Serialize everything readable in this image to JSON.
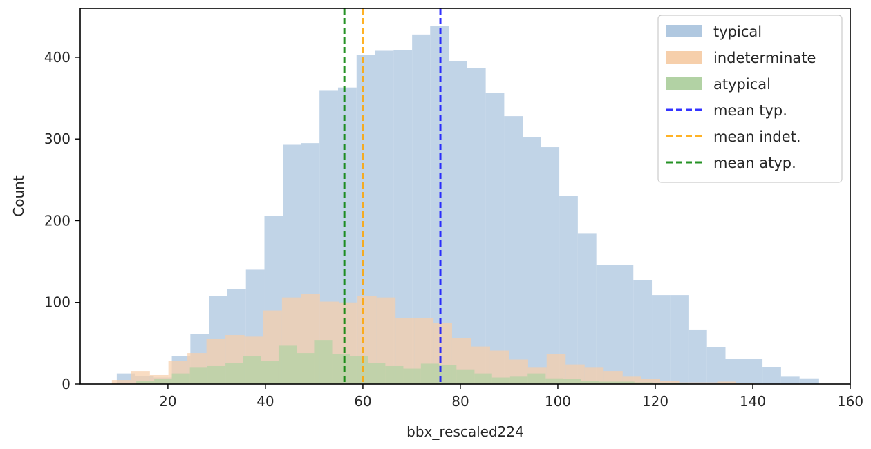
{
  "chart_data": {
    "type": "histogram",
    "xlabel": "bbx_rescaled224",
    "ylabel": "Count",
    "xlim": [
      2,
      160
    ],
    "ylim": [
      0,
      460
    ],
    "xticks": [
      20,
      40,
      60,
      80,
      100,
      120,
      140,
      160
    ],
    "yticks": [
      0,
      100,
      200,
      300,
      400
    ],
    "legend_position": "top-right",
    "series": [
      {
        "name": "typical",
        "color": "#b0c8e0",
        "bins": [
          {
            "x0": 9.5,
            "x1": 13.3,
            "count": 13
          },
          {
            "x0": 13.3,
            "x1": 17.1,
            "count": 10
          },
          {
            "x0": 17.1,
            "x1": 20.8,
            "count": 8
          },
          {
            "x0": 20.8,
            "x1": 24.6,
            "count": 34
          },
          {
            "x0": 24.6,
            "x1": 28.4,
            "count": 61
          },
          {
            "x0": 28.4,
            "x1": 32.2,
            "count": 108
          },
          {
            "x0": 32.2,
            "x1": 36.0,
            "count": 116
          },
          {
            "x0": 36.0,
            "x1": 39.8,
            "count": 140
          },
          {
            "x0": 39.8,
            "x1": 43.6,
            "count": 206
          },
          {
            "x0": 43.6,
            "x1": 47.3,
            "count": 293
          },
          {
            "x0": 47.3,
            "x1": 51.1,
            "count": 295
          },
          {
            "x0": 51.1,
            "x1": 54.9,
            "count": 359
          },
          {
            "x0": 54.9,
            "x1": 58.7,
            "count": 363
          },
          {
            "x0": 58.7,
            "x1": 62.5,
            "count": 403
          },
          {
            "x0": 62.5,
            "x1": 66.3,
            "count": 408
          },
          {
            "x0": 66.3,
            "x1": 70.1,
            "count": 409
          },
          {
            "x0": 70.1,
            "x1": 73.8,
            "count": 428
          },
          {
            "x0": 73.8,
            "x1": 77.6,
            "count": 438
          },
          {
            "x0": 77.6,
            "x1": 81.4,
            "count": 395
          },
          {
            "x0": 81.4,
            "x1": 85.2,
            "count": 387
          },
          {
            "x0": 85.2,
            "x1": 89.0,
            "count": 356
          },
          {
            "x0": 89.0,
            "x1": 92.8,
            "count": 328
          },
          {
            "x0": 92.8,
            "x1": 96.6,
            "count": 302
          },
          {
            "x0": 96.6,
            "x1": 100.3,
            "count": 290
          },
          {
            "x0": 100.3,
            "x1": 104.1,
            "count": 230
          },
          {
            "x0": 104.1,
            "x1": 107.9,
            "count": 184
          },
          {
            "x0": 107.9,
            "x1": 111.7,
            "count": 146
          },
          {
            "x0": 111.7,
            "x1": 115.5,
            "count": 146
          },
          {
            "x0": 115.5,
            "x1": 119.3,
            "count": 127
          },
          {
            "x0": 119.3,
            "x1": 123.1,
            "count": 109
          },
          {
            "x0": 123.1,
            "x1": 126.8,
            "count": 109
          },
          {
            "x0": 126.8,
            "x1": 130.6,
            "count": 66
          },
          {
            "x0": 130.6,
            "x1": 134.4,
            "count": 45
          },
          {
            "x0": 134.4,
            "x1": 138.2,
            "count": 31
          },
          {
            "x0": 138.2,
            "x1": 142.0,
            "count": 31
          },
          {
            "x0": 142.0,
            "x1": 145.8,
            "count": 21
          },
          {
            "x0": 145.8,
            "x1": 149.6,
            "count": 9
          },
          {
            "x0": 149.6,
            "x1": 153.6,
            "count": 7
          }
        ]
      },
      {
        "name": "indeterminate",
        "color": "#f6cfab",
        "bins": [
          {
            "x0": 8.5,
            "x1": 12.4,
            "count": 5
          },
          {
            "x0": 12.4,
            "x1": 16.3,
            "count": 16
          },
          {
            "x0": 16.3,
            "x1": 20.1,
            "count": 11
          },
          {
            "x0": 20.1,
            "x1": 24.0,
            "count": 28
          },
          {
            "x0": 24.0,
            "x1": 27.9,
            "count": 38
          },
          {
            "x0": 27.9,
            "x1": 31.8,
            "count": 55
          },
          {
            "x0": 31.8,
            "x1": 35.7,
            "count": 60
          },
          {
            "x0": 35.7,
            "x1": 39.5,
            "count": 58
          },
          {
            "x0": 39.5,
            "x1": 43.4,
            "count": 90
          },
          {
            "x0": 43.4,
            "x1": 47.3,
            "count": 106
          },
          {
            "x0": 47.3,
            "x1": 51.2,
            "count": 110
          },
          {
            "x0": 51.2,
            "x1": 55.1,
            "count": 101
          },
          {
            "x0": 55.1,
            "x1": 58.9,
            "count": 100
          },
          {
            "x0": 58.9,
            "x1": 62.8,
            "count": 108
          },
          {
            "x0": 62.8,
            "x1": 66.7,
            "count": 106
          },
          {
            "x0": 66.7,
            "x1": 70.6,
            "count": 81
          },
          {
            "x0": 70.6,
            "x1": 74.5,
            "count": 81
          },
          {
            "x0": 74.5,
            "x1": 78.3,
            "count": 75
          },
          {
            "x0": 78.3,
            "x1": 82.2,
            "count": 56
          },
          {
            "x0": 82.2,
            "x1": 86.1,
            "count": 46
          },
          {
            "x0": 86.1,
            "x1": 90.0,
            "count": 41
          },
          {
            "x0": 90.0,
            "x1": 93.9,
            "count": 30
          },
          {
            "x0": 93.9,
            "x1": 97.7,
            "count": 20
          },
          {
            "x0": 97.7,
            "x1": 101.6,
            "count": 37
          },
          {
            "x0": 101.6,
            "x1": 105.5,
            "count": 24
          },
          {
            "x0": 105.5,
            "x1": 109.4,
            "count": 20
          },
          {
            "x0": 109.4,
            "x1": 113.3,
            "count": 16
          },
          {
            "x0": 113.3,
            "x1": 117.1,
            "count": 9
          },
          {
            "x0": 117.1,
            "x1": 121.0,
            "count": 6
          },
          {
            "x0": 121.0,
            "x1": 124.9,
            "count": 4
          },
          {
            "x0": 124.9,
            "x1": 128.8,
            "count": 2
          },
          {
            "x0": 128.8,
            "x1": 132.7,
            "count": 2
          },
          {
            "x0": 132.7,
            "x1": 136.5,
            "count": 3
          },
          {
            "x0": 136.5,
            "x1": 140.4,
            "count": 1
          }
        ]
      },
      {
        "name": "atypical",
        "color": "#b2d2a4",
        "bins": [
          {
            "x0": 13.5,
            "x1": 17.2,
            "count": 4
          },
          {
            "x0": 17.2,
            "x1": 20.8,
            "count": 6
          },
          {
            "x0": 20.8,
            "x1": 24.5,
            "count": 13
          },
          {
            "x0": 24.5,
            "x1": 28.1,
            "count": 20
          },
          {
            "x0": 28.1,
            "x1": 31.8,
            "count": 22
          },
          {
            "x0": 31.8,
            "x1": 35.4,
            "count": 26
          },
          {
            "x0": 35.4,
            "x1": 39.1,
            "count": 34
          },
          {
            "x0": 39.1,
            "x1": 42.7,
            "count": 28
          },
          {
            "x0": 42.7,
            "x1": 46.4,
            "count": 47
          },
          {
            "x0": 46.4,
            "x1": 50.0,
            "count": 38
          },
          {
            "x0": 50.0,
            "x1": 53.7,
            "count": 54
          },
          {
            "x0": 53.7,
            "x1": 57.3,
            "count": 37
          },
          {
            "x0": 57.3,
            "x1": 61.0,
            "count": 34
          },
          {
            "x0": 61.0,
            "x1": 64.6,
            "count": 26
          },
          {
            "x0": 64.6,
            "x1": 68.3,
            "count": 22
          },
          {
            "x0": 68.3,
            "x1": 71.9,
            "count": 19
          },
          {
            "x0": 71.9,
            "x1": 75.6,
            "count": 25
          },
          {
            "x0": 75.6,
            "x1": 79.2,
            "count": 23
          },
          {
            "x0": 79.2,
            "x1": 82.9,
            "count": 18
          },
          {
            "x0": 82.9,
            "x1": 86.5,
            "count": 13
          },
          {
            "x0": 86.5,
            "x1": 90.2,
            "count": 8
          },
          {
            "x0": 90.2,
            "x1": 93.8,
            "count": 9
          },
          {
            "x0": 93.8,
            "x1": 97.5,
            "count": 13
          },
          {
            "x0": 97.5,
            "x1": 101.1,
            "count": 7
          },
          {
            "x0": 101.1,
            "x1": 104.8,
            "count": 6
          },
          {
            "x0": 104.8,
            "x1": 108.4,
            "count": 4
          },
          {
            "x0": 108.4,
            "x1": 112.1,
            "count": 3
          },
          {
            "x0": 112.1,
            "x1": 115.7,
            "count": 3
          },
          {
            "x0": 115.7,
            "x1": 119.4,
            "count": 2
          },
          {
            "x0": 119.4,
            "x1": 123.0,
            "count": 1
          },
          {
            "x0": 123.0,
            "x1": 126.7,
            "count": 1
          }
        ]
      }
    ],
    "mean_lines": [
      {
        "name": "mean typ.",
        "x": 75.9,
        "color": "#1010ff"
      },
      {
        "name": "mean indet.",
        "x": 60.0,
        "color": "#ffa500"
      },
      {
        "name": "mean atyp.",
        "x": 56.2,
        "color": "#008000"
      }
    ],
    "legend": [
      {
        "label": "typical",
        "kind": "patch",
        "color": "#b0c8e0"
      },
      {
        "label": "indeterminate",
        "kind": "patch",
        "color": "#f6cfab"
      },
      {
        "label": "atypical",
        "kind": "patch",
        "color": "#b2d2a4"
      },
      {
        "label": "mean typ.",
        "kind": "dashed",
        "color": "#1010ff"
      },
      {
        "label": "mean indet.",
        "kind": "dashed",
        "color": "#ffa500"
      },
      {
        "label": "mean atyp.",
        "kind": "dashed",
        "color": "#008000"
      }
    ]
  }
}
